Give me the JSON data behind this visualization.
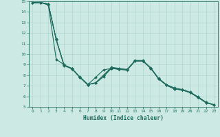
{
  "xlabel": "Humidex (Indice chaleur)",
  "xlim": [
    -0.5,
    23.5
  ],
  "ylim": [
    5,
    15
  ],
  "xticks": [
    0,
    1,
    2,
    3,
    4,
    5,
    6,
    7,
    8,
    9,
    10,
    11,
    12,
    13,
    14,
    15,
    16,
    17,
    18,
    19,
    20,
    21,
    22,
    23
  ],
  "yticks": [
    5,
    6,
    7,
    8,
    9,
    10,
    11,
    12,
    13,
    14,
    15
  ],
  "bg_color": "#cce9e4",
  "grid_color": "#aed4ce",
  "line_color": "#1f6b5e",
  "series": [
    [
      14.9,
      14.9,
      14.65,
      9.5,
      9.0,
      8.6,
      7.85,
      7.15,
      7.25,
      8.0,
      8.75,
      8.65,
      8.55,
      9.4,
      9.4,
      8.7,
      7.7,
      7.1,
      6.8,
      6.65,
      6.4,
      5.95,
      5.45,
      5.2
    ],
    [
      14.9,
      14.9,
      14.75,
      11.4,
      8.95,
      8.65,
      7.8,
      7.1,
      7.8,
      8.5,
      8.65,
      8.55,
      8.5,
      9.35,
      9.35,
      8.65,
      7.65,
      7.05,
      6.7,
      6.6,
      6.35,
      5.9,
      5.4,
      5.2
    ],
    [
      14.9,
      14.9,
      14.75,
      11.4,
      8.95,
      8.65,
      7.8,
      7.1,
      7.25,
      7.85,
      8.65,
      8.55,
      8.5,
      9.35,
      9.35,
      8.65,
      7.65,
      7.05,
      6.7,
      6.6,
      6.35,
      5.9,
      5.4,
      5.2
    ],
    [
      14.85,
      14.85,
      14.75,
      11.35,
      8.9,
      8.6,
      7.8,
      7.1,
      7.3,
      8.0,
      8.7,
      8.6,
      8.5,
      9.35,
      9.35,
      8.65,
      7.65,
      7.05,
      6.7,
      6.6,
      6.35,
      5.9,
      5.4,
      5.2
    ]
  ]
}
